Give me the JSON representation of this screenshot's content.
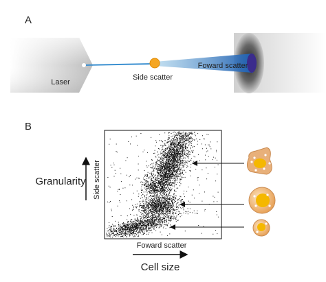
{
  "panel_a": {
    "label": "A",
    "laser": "Laser",
    "side_scatter": "Side scatter",
    "forward_scatter": "Foward scatter"
  },
  "panel_b": {
    "label": "B",
    "y_axis_label": "Side scatter",
    "y_axis_meaning": "Granularity",
    "x_axis_label": "Foward scatter",
    "x_axis_meaning": "Cell size"
  }
}
